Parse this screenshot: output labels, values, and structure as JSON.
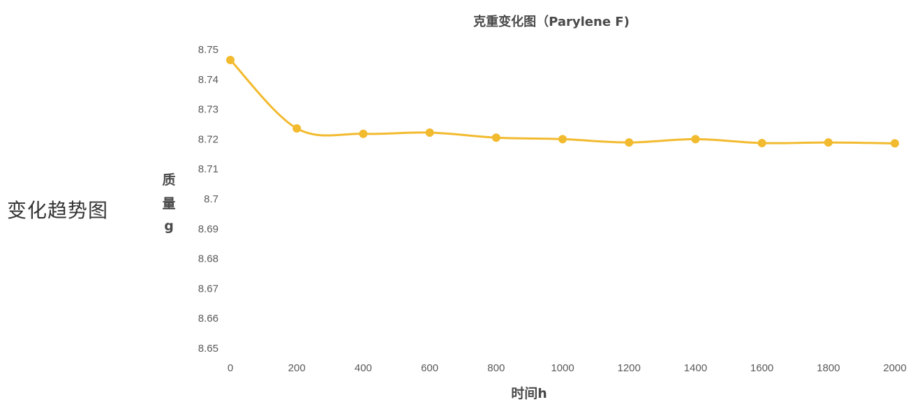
{
  "side_label": "变化趋势图",
  "chart_data": {
    "type": "line",
    "title": "克重变化图（Parylene F)",
    "xlabel": "时间h",
    "ylabel_lines": [
      "质",
      "量",
      "g"
    ],
    "x": [
      0,
      200,
      400,
      600,
      800,
      1000,
      1200,
      1400,
      1600,
      1800,
      2000
    ],
    "xticks": [
      "0",
      "200",
      "400",
      "600",
      "800",
      "1000",
      "1200",
      "1400",
      "1600",
      "1800",
      "2000"
    ],
    "ylim": [
      8.65,
      8.75
    ],
    "yticks": [
      "8.75",
      "8.74",
      "8.73",
      "8.72",
      "8.71",
      "8.7",
      "8.69",
      "8.68",
      "8.67",
      "8.66",
      "8.65"
    ],
    "series": [
      {
        "values": [
          8.7465,
          8.7236,
          8.7218,
          8.7222,
          8.7205,
          8.72,
          8.7189,
          8.72,
          8.7187,
          8.7189,
          8.7186
        ],
        "color": "#F2BA2E"
      }
    ],
    "grid": false,
    "legend": "none"
  }
}
